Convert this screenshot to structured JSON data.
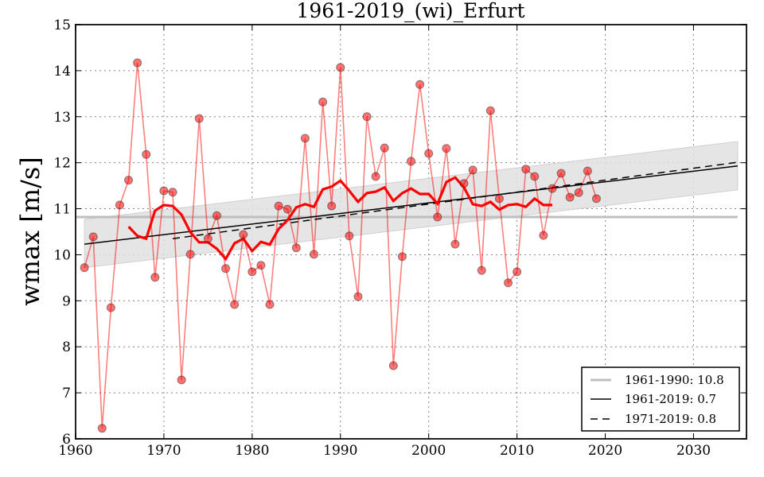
{
  "chart_data": {
    "type": "line",
    "title": "1961-2019_(wi)_Erfurt",
    "xlabel": "",
    "ylabel": "wmax [m/s]",
    "xlim": [
      1960,
      2036
    ],
    "ylim": [
      6,
      15
    ],
    "grid": true,
    "x_ticks": [
      1960,
      1970,
      1980,
      1990,
      2000,
      2010,
      2020,
      2030
    ],
    "y_ticks": [
      6,
      7,
      8,
      9,
      10,
      11,
      12,
      13,
      14,
      15
    ],
    "colors": {
      "points": "#ff0000",
      "smooth": "#ff0000",
      "mean": "#bfbfbf",
      "trend": "#000000",
      "band": "#e0e0e0"
    },
    "series": [
      {
        "name": "annual",
        "x": [
          1961,
          1962,
          1963,
          1964,
          1965,
          1966,
          1967,
          1968,
          1969,
          1970,
          1971,
          1972,
          1973,
          1974,
          1975,
          1976,
          1977,
          1978,
          1979,
          1980,
          1981,
          1982,
          1983,
          1984,
          1985,
          1986,
          1987,
          1988,
          1989,
          1990,
          1991,
          1992,
          1993,
          1994,
          1995,
          1996,
          1997,
          1998,
          1999,
          2000,
          2001,
          2002,
          2003,
          2004,
          2005,
          2006,
          2007,
          2008,
          2009,
          2010,
          2011,
          2012,
          2013,
          2014,
          2015,
          2016,
          2017,
          2018,
          2019
        ],
        "values": [
          9.72,
          10.39,
          6.23,
          8.85,
          11.08,
          11.62,
          14.17,
          12.18,
          9.51,
          11.39,
          11.36,
          7.28,
          10.01,
          12.96,
          10.35,
          10.85,
          9.7,
          8.92,
          10.44,
          9.63,
          9.77,
          8.92,
          11.06,
          10.99,
          10.15,
          12.53,
          10.01,
          13.32,
          11.06,
          14.07,
          10.41,
          9.09,
          13.0,
          11.7,
          12.32,
          7.59,
          9.96,
          12.03,
          13.7,
          12.2,
          10.82,
          12.31,
          10.23,
          11.55,
          11.84,
          9.66,
          13.13,
          11.22,
          9.39,
          9.63,
          11.86,
          11.7,
          10.42,
          11.44,
          11.77,
          11.25,
          11.35,
          11.82,
          11.22
        ]
      },
      {
        "name": "running-mean",
        "x": [
          1966,
          1967,
          1968,
          1969,
          1970,
          1971,
          1972,
          1973,
          1974,
          1975,
          1976,
          1977,
          1978,
          1979,
          1980,
          1981,
          1982,
          1983,
          1984,
          1985,
          1986,
          1987,
          1988,
          1989,
          1990,
          1991,
          1992,
          1993,
          1994,
          1995,
          1996,
          1997,
          1998,
          1999,
          2000,
          2001,
          2002,
          2003,
          2004,
          2005,
          2006,
          2007,
          2008,
          2009,
          2010,
          2011,
          2012,
          2013,
          2014
        ],
        "values": [
          10.61,
          10.41,
          10.35,
          10.96,
          11.08,
          11.06,
          10.87,
          10.49,
          10.27,
          10.27,
          10.13,
          9.91,
          10.25,
          10.35,
          10.08,
          10.28,
          10.22,
          10.56,
          10.75,
          11.03,
          11.1,
          11.04,
          11.42,
          11.48,
          11.61,
          11.39,
          11.15,
          11.34,
          11.37,
          11.46,
          11.17,
          11.34,
          11.44,
          11.32,
          11.32,
          11.11,
          11.58,
          11.68,
          11.46,
          11.1,
          11.06,
          11.15,
          10.98,
          11.08,
          11.1,
          11.04,
          11.22,
          11.08,
          11.08
        ]
      },
      {
        "name": "1961-1990: 10.8",
        "x": [
          1960,
          2035
        ],
        "values": [
          10.82,
          10.82
        ]
      },
      {
        "name": "1961-2019: 0.7",
        "x": [
          1961,
          2035
        ],
        "values": [
          10.23,
          11.93
        ]
      },
      {
        "name": "1971-2019: 0.8",
        "x": [
          1971,
          2035
        ],
        "values": [
          10.35,
          12.01
        ]
      },
      {
        "name": "confidence-band",
        "x": [
          1961,
          2035
        ],
        "upper": [
          10.77,
          12.46
        ],
        "lower": [
          9.72,
          11.41
        ]
      }
    ],
    "legend": {
      "position": "bottom-right",
      "entries": [
        "1961-1990: 10.8",
        "1961-2019: 0.7",
        "1971-2019: 0.8"
      ]
    }
  }
}
